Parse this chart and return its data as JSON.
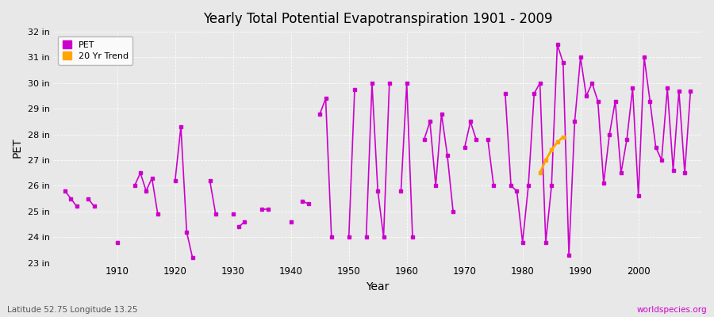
{
  "title": "Yearly Total Potential Evapotranspiration 1901 - 2009",
  "xlabel": "Year",
  "ylabel": "PET",
  "footer_left": "Latitude 52.75 Longitude 13.25",
  "footer_right": "worldspecies.org",
  "bg_color": "#e8e8e8",
  "plot_bg_color": "#e8e8e8",
  "pet_color": "#cc00cc",
  "trend_color": "#ffa500",
  "ylim_min": 23,
  "ylim_max": 32,
  "ytick_values": [
    23,
    24,
    25,
    26,
    27,
    28,
    29,
    30,
    31,
    32
  ],
  "xtick_values": [
    1910,
    1920,
    1930,
    1940,
    1950,
    1960,
    1970,
    1980,
    1990,
    2000
  ],
  "pet_segments": [
    {
      "years": [
        1901,
        1902,
        1903
      ],
      "values": [
        25.8,
        25.5,
        25.2
      ]
    },
    {
      "years": [
        1905,
        1906
      ],
      "values": [
        25.5,
        25.2
      ]
    },
    {
      "years": [
        1910
      ],
      "values": [
        23.8
      ]
    },
    {
      "years": [
        1913,
        1914,
        1915,
        1916,
        1917
      ],
      "values": [
        26.0,
        26.5,
        25.8,
        26.3,
        24.9
      ]
    },
    {
      "years": [
        1920,
        1921,
        1922,
        1923
      ],
      "values": [
        26.2,
        28.3,
        24.2,
        23.2
      ]
    },
    {
      "years": [
        1926,
        1927
      ],
      "values": [
        26.2,
        24.9
      ]
    },
    {
      "years": [
        1930
      ],
      "values": [
        24.9
      ]
    },
    {
      "years": [
        1931,
        1932
      ],
      "values": [
        24.4,
        24.6
      ]
    },
    {
      "years": [
        1935,
        1936
      ],
      "values": [
        25.1,
        25.1
      ]
    },
    {
      "years": [
        1940
      ],
      "values": [
        24.6
      ]
    },
    {
      "years": [
        1942,
        1943
      ],
      "values": [
        25.4,
        25.3
      ]
    },
    {
      "years": [
        1945,
        1946,
        1947
      ],
      "values": [
        28.8,
        29.4,
        24.0
      ]
    },
    {
      "years": [
        1950,
        1951
      ],
      "values": [
        24.0,
        29.75
      ]
    },
    {
      "years": [
        1953,
        1954,
        1955,
        1956,
        1957
      ],
      "values": [
        24.0,
        30.0,
        25.8,
        24.0,
        30.0
      ]
    },
    {
      "years": [
        1959,
        1960,
        1961
      ],
      "values": [
        25.8,
        30.0,
        24.0
      ]
    },
    {
      "years": [
        1963,
        1964,
        1965,
        1966,
        1967,
        1968
      ],
      "values": [
        27.8,
        28.5,
        26.0,
        28.8,
        27.2,
        25.0
      ]
    },
    {
      "years": [
        1970,
        1971,
        1972
      ],
      "values": [
        27.5,
        28.5,
        27.8
      ]
    },
    {
      "years": [
        1974,
        1975
      ],
      "values": [
        27.8,
        26.0
      ]
    },
    {
      "years": [
        1977,
        1978,
        1979,
        1980,
        1981,
        1982,
        1983,
        1984,
        1985,
        1986,
        1987,
        1988,
        1989,
        1990,
        1991,
        1992,
        1993,
        1994,
        1995,
        1996,
        1997,
        1998,
        1999,
        2000,
        2001,
        2002,
        2003,
        2004,
        2005,
        2006,
        2007,
        2008,
        2009
      ],
      "values": [
        29.6,
        26.0,
        25.8,
        23.8,
        26.0,
        29.6,
        30.0,
        23.8,
        26.0,
        31.5,
        30.8,
        23.3,
        28.5,
        31.0,
        29.5,
        30.0,
        29.3,
        26.1,
        28.0,
        29.3,
        26.5,
        27.8,
        29.8,
        25.6,
        31.0,
        29.3,
        27.5,
        27.0,
        29.8,
        26.6,
        29.7,
        26.5,
        29.7
      ]
    }
  ],
  "trend_segment": {
    "years": [
      1983,
      1984,
      1985,
      1986,
      1987
    ],
    "values": [
      26.5,
      27.0,
      27.4,
      27.7,
      27.9
    ]
  }
}
